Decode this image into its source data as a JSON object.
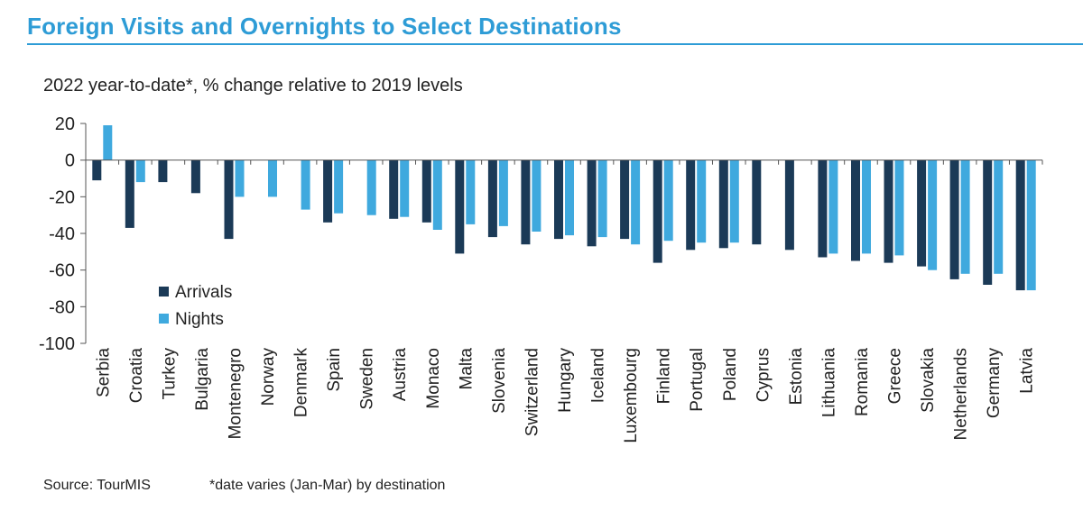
{
  "header": {
    "title": "Foreign Visits and Overnights to Select Destinations",
    "subtitle": "2022 year-to-date*, % change relative to 2019 levels"
  },
  "footer": {
    "source": "Source: TourMIS",
    "note": "*date varies (Jan-Mar) by destination"
  },
  "colors": {
    "accent": "#2E9CD6",
    "arrivals": "#1B3A57",
    "nights": "#3FA9DE"
  },
  "chart_data": {
    "type": "bar",
    "title": "Foreign Visits and Overnights to Select Destinations",
    "subtitle": "2022 year-to-date*, % change relative to 2019 levels",
    "xlabel": "",
    "ylabel": "",
    "ylim": [
      -100,
      20
    ],
    "yticks": [
      20,
      0,
      -20,
      -40,
      -60,
      -80,
      -100
    ],
    "grid": false,
    "legend": "lower-left",
    "categories": [
      "Serbia",
      "Croatia",
      "Turkey",
      "Bulgaria",
      "Montenegro",
      "Norway",
      "Denmark",
      "Spain",
      "Sweden",
      "Austria",
      "Monaco",
      "Malta",
      "Slovenia",
      "Switzerland",
      "Hungary",
      "Iceland",
      "Luxembourg",
      "Finland",
      "Portugal",
      "Poland",
      "Cyprus",
      "Estonia",
      "Lithuania",
      "Romania",
      "Greece",
      "Slovakia",
      "Netherlands",
      "Germany",
      "Latvia"
    ],
    "series": [
      {
        "name": "Arrivals",
        "color": "#1B3A57",
        "values": [
          -11,
          -37,
          -12,
          -18,
          -43,
          null,
          null,
          -34,
          null,
          -32,
          -34,
          -51,
          -42,
          -46,
          -43,
          -47,
          -43,
          -56,
          -49,
          -48,
          -46,
          -49,
          -53,
          -55,
          -56,
          -58,
          -65,
          -68,
          -71
        ]
      },
      {
        "name": "Nights",
        "color": "#3FA9DE",
        "values": [
          19,
          -12,
          null,
          null,
          -20,
          -20,
          -27,
          -29,
          -30,
          -31,
          -38,
          -35,
          -36,
          -39,
          -41,
          -42,
          -46,
          -44,
          -45,
          -45,
          null,
          null,
          -51,
          -51,
          -52,
          -60,
          -62,
          -62,
          -71
        ]
      }
    ]
  }
}
